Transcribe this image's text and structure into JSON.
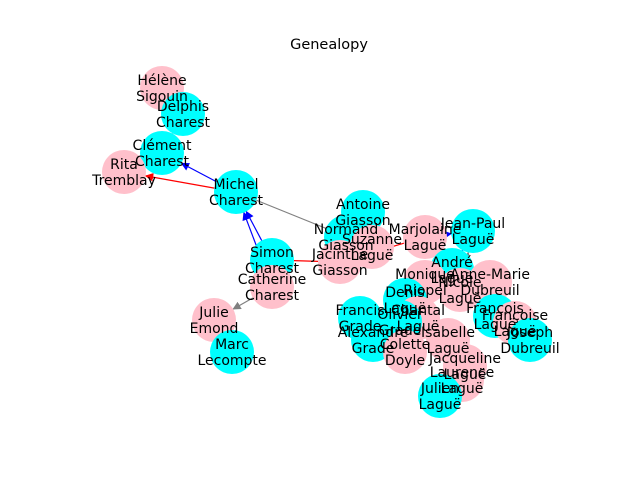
{
  "title": "Genealopy",
  "colors": {
    "male": "#00FFFF",
    "female": "#FFC0CB",
    "edge_parent_male": "#0000FF",
    "edge_parent_female": "#FF0000",
    "edge_other": "#808080"
  },
  "nodes": [
    {
      "id": "helene",
      "label": "Hélène\nSigouin",
      "gender": "female"
    },
    {
      "id": "delphis",
      "label": "Delphis\nCharest",
      "gender": "male"
    },
    {
      "id": "clement",
      "label": "Clément\nCharest",
      "gender": "male"
    },
    {
      "id": "rita",
      "label": "Rita\nTremblay",
      "gender": "female"
    },
    {
      "id": "michel",
      "label": "Michel\nCharest",
      "gender": "male"
    },
    {
      "id": "simon",
      "label": "Simon\nCharest",
      "gender": "male"
    },
    {
      "id": "catherine",
      "label": "Catherine\nCharest",
      "gender": "female"
    },
    {
      "id": "julie",
      "label": "Julie\nEmond",
      "gender": "female"
    },
    {
      "id": "marc",
      "label": "Marc\nLecompte",
      "gender": "male"
    },
    {
      "id": "antoine",
      "label": "Antoine\nGiasson",
      "gender": "male"
    },
    {
      "id": "normand",
      "label": "Normand\nGiasson",
      "gender": "male"
    },
    {
      "id": "suzanne",
      "label": "Suzanne\nLaguë",
      "gender": "female"
    },
    {
      "id": "jacinthe",
      "label": "Jacinthe\nGiasson",
      "gender": "female"
    },
    {
      "id": "marjolaine",
      "label": "Marjolaine\nLaguë",
      "gender": "female"
    },
    {
      "id": "jeanpaul",
      "label": "Jean-Paul\nLaguë",
      "gender": "male"
    },
    {
      "id": "andre",
      "label": "André\nLaguë",
      "gender": "male"
    },
    {
      "id": "monique",
      "label": "Monique\nRiopel",
      "gender": "female"
    },
    {
      "id": "annemarie",
      "label": "Anne-Marie\nDubreuil",
      "gender": "female"
    },
    {
      "id": "nicole",
      "label": "Nicole\nLaguë",
      "gender": "female"
    },
    {
      "id": "denis",
      "label": "Denis\nLaguë",
      "gender": "male"
    },
    {
      "id": "chantal",
      "label": "Chantal\nLaguë",
      "gender": "female"
    },
    {
      "id": "francis",
      "label": "Francis\nGrade",
      "gender": "male"
    },
    {
      "id": "olivier",
      "label": "Olivier\nGrade",
      "gender": "male"
    },
    {
      "id": "alexandre",
      "label": "Alexandre\nGrade",
      "gender": "male"
    },
    {
      "id": "isabelle",
      "label": "Isabelle\nLaguë",
      "gender": "female"
    },
    {
      "id": "colette",
      "label": "Colette\nDoyle",
      "gender": "female"
    },
    {
      "id": "francois",
      "label": "François\nLaguë",
      "gender": "male"
    },
    {
      "id": "francoise",
      "label": "Françoise\nLaguë",
      "gender": "female"
    },
    {
      "id": "joseph",
      "label": "Joseph\nDubreuil",
      "gender": "male"
    },
    {
      "id": "jacqueline",
      "label": "Jacqueline\nLaguë",
      "gender": "female"
    },
    {
      "id": "laurence",
      "label": "Laurence\nLaguë",
      "gender": "female"
    },
    {
      "id": "julien",
      "label": "Julien\nLaguë",
      "gender": "male"
    }
  ],
  "edges": [
    {
      "from": "clement",
      "to": "delphis",
      "color": "edge_other",
      "arrow": false
    },
    {
      "from": "michel",
      "to": "clement",
      "color": "edge_parent_male",
      "arrow": true
    },
    {
      "from": "michel",
      "to": "rita",
      "color": "edge_parent_female",
      "arrow": true
    },
    {
      "from": "simon",
      "to": "michel",
      "color": "edge_parent_male",
      "arrow": true
    },
    {
      "from": "catherine",
      "to": "michel",
      "color": "edge_parent_male",
      "arrow": true
    },
    {
      "from": "catherine",
      "to": "julie",
      "color": "edge_other",
      "arrow": true
    },
    {
      "from": "julie",
      "to": "marc",
      "color": "edge_other",
      "arrow": true
    },
    {
      "from": "marc",
      "to": "julie",
      "color": "edge_other",
      "arrow": true
    },
    {
      "from": "suzanne",
      "to": "michel",
      "color": "edge_other",
      "arrow": false
    },
    {
      "from": "jacinthe",
      "to": "marjolaine",
      "color": "edge_parent_female",
      "arrow": false
    },
    {
      "from": "simon",
      "to": "jacinthe",
      "color": "edge_parent_female",
      "arrow": false
    },
    {
      "from": "marjolaine",
      "to": "jeanpaul",
      "color": "edge_parent_male",
      "arrow": true
    },
    {
      "from": "andre",
      "to": "jeanpaul",
      "color": "edge_parent_male",
      "arrow": true
    },
    {
      "from": "nicole",
      "to": "jeanpaul",
      "color": "edge_other",
      "arrow": true
    },
    {
      "from": "andre",
      "to": "annemarie",
      "color": "edge_other",
      "arrow": true
    }
  ]
}
